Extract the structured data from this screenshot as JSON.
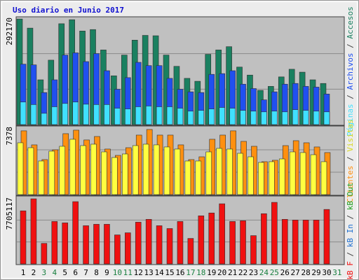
{
  "title": "Uso diario en Junio 2017",
  "legend_separator": " / ",
  "weekend_color": "#1a8040",
  "chart_data": [
    {
      "type": "bar",
      "ylim": [
        0,
        292170
      ],
      "yticks": [
        292170
      ],
      "grid": [
        97390,
        194780
      ],
      "series": [
        {
          "name": "Páginas",
          "color": "#40e0ff",
          "values": [
            62000,
            55000,
            31000,
            49000,
            58000,
            62000,
            56000,
            55000,
            55000,
            45000,
            43000,
            49000,
            51000,
            49000,
            49000,
            45000,
            37000,
            39000,
            43000,
            47000,
            45000,
            39000,
            37000,
            35000,
            37000,
            35000,
            41000,
            39000,
            37000,
            35000,
            null
          ]
        },
        {
          "name": "Archivos",
          "color": "#2050f0",
          "values": [
            166000,
            164000,
            88000,
            123000,
            191000,
            197000,
            173000,
            195000,
            148000,
            97000,
            129000,
            171000,
            162000,
            162000,
            127000,
            97000,
            90000,
            88000,
            138000,
            140000,
            148000,
            111000,
            99000,
            68000,
            90000,
            111000,
            113000,
            105000,
            103000,
            84000,
            null
          ]
        },
        {
          "name": "Accesos",
          "color": "#1a8060",
          "values": [
            290000,
            265000,
            123000,
            177000,
            277000,
            288000,
            257000,
            261000,
            205000,
            134000,
            191000,
            232000,
            245000,
            244000,
            191000,
            160000,
            127000,
            119000,
            193000,
            205000,
            214000,
            158000,
            136000,
            94000,
            105000,
            131000,
            152000,
            144000,
            123000,
            113000,
            null
          ]
        }
      ]
    },
    {
      "type": "bar",
      "ylim": [
        0,
        7378
      ],
      "yticks": [
        7378
      ],
      "grid": [
        2459,
        4919
      ],
      "series": [
        {
          "name": "Clientes",
          "color": "#ff9010",
          "values": [
            7000,
            5460,
            3845,
            4920,
            6690,
            7075,
            6000,
            6380,
            5000,
            4305,
            5150,
            6535,
            7150,
            6535,
            6535,
            5460,
            3845,
            4150,
            6075,
            6535,
            7000,
            5845,
            5305,
            3615,
            3770,
            5380,
            5920,
            5690,
            5230,
            4615,
            null
          ]
        },
        {
          "name": "Visitas",
          "color": "#ffff40",
          "values": [
            5690,
            5150,
            3690,
            4770,
            5305,
            6075,
            5380,
            5535,
            4690,
            4075,
            4460,
            5380,
            5535,
            5460,
            5230,
            5000,
            3690,
            3690,
            4690,
            5075,
            5000,
            4535,
            4150,
            3535,
            3615,
            3920,
            4690,
            4615,
            4380,
            3615,
            null
          ]
        }
      ]
    },
    {
      "type": "bar",
      "ylim": [
        0,
        7705117
      ],
      "yticks": [
        7705117
      ],
      "grid": [
        2568372,
        5136745
      ],
      "categories": [
        "1",
        "2",
        "3",
        "4",
        "5",
        "6",
        "7",
        "8",
        "9",
        "10",
        "11",
        "12",
        "13",
        "14",
        "15",
        "16",
        "17",
        "18",
        "19",
        "20",
        "21",
        "22",
        "23",
        "24",
        "25",
        "26",
        "27",
        "28",
        "29",
        "30",
        "31"
      ],
      "weekend": [
        2,
        3,
        9,
        10,
        16,
        17,
        23,
        24,
        30
      ],
      "series": [
        {
          "name": "kB F",
          "color": "#f01010",
          "values": [
            6214000,
            7622000,
            2403000,
            4971000,
            4805000,
            7291000,
            4474000,
            4640000,
            4640000,
            3397000,
            3645000,
            4888000,
            5220000,
            4474000,
            4143000,
            4971000,
            2983000,
            5634000,
            5965000,
            7042000,
            4971000,
            5054000,
            3314000,
            5882000,
            7208000,
            5220000,
            5137000,
            5137000,
            5137000,
            6380000,
            null
          ]
        },
        {
          "name": "kB In",
          "color": "#2070d0"
        },
        {
          "name": "kB Out",
          "color": "#20a020"
        }
      ]
    }
  ]
}
